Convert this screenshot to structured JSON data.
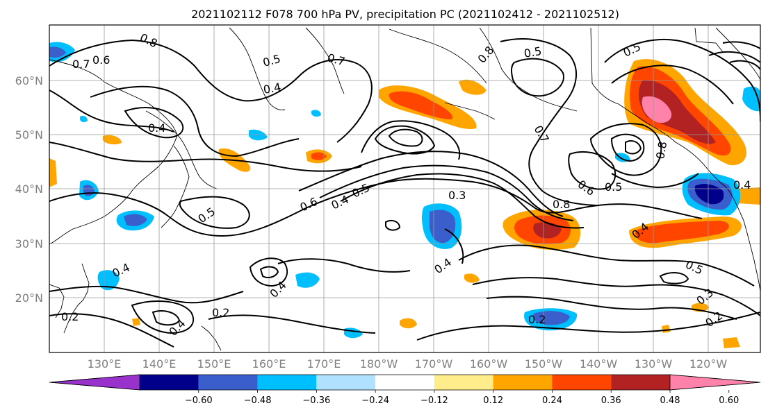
{
  "title": "2021102112 F078 700 hPa PV, precipitation PC (2021102412 - 2021102512)",
  "lat_labels": [
    "60°N",
    "50°N",
    "40°N",
    "30°N",
    "20°N"
  ],
  "lon_labels": [
    "130°E",
    "140°E",
    "150°E",
    "160°E",
    "170°E",
    "180°W",
    "170°W",
    "160°W",
    "150°W",
    "140°W",
    "130°W",
    "120°W"
  ],
  "colorbar": {
    "colors": [
      "#9932CC",
      "#00008B",
      "#3A5FCD",
      "#00BFFF",
      "#B0E2FF",
      "#FFFFFF",
      "#FFEC8B",
      "#FFA500",
      "#FF4500",
      "#B22222",
      "#FF82AB"
    ],
    "tick_labels": [
      "−0.60",
      "−0.48",
      "−0.36",
      "−0.24",
      "−0.12",
      "0.12",
      "0.24",
      "0.36",
      "0.48",
      "0.60"
    ]
  },
  "contour_labels": [
    {
      "text": "0.8"
    },
    {
      "text": "0.7"
    },
    {
      "text": "0.6"
    },
    {
      "text": "0.5"
    },
    {
      "text": "0.4"
    },
    {
      "text": "0.5"
    },
    {
      "text": "0.7"
    },
    {
      "text": "0.8"
    },
    {
      "text": "0.5"
    },
    {
      "text": "0.5"
    },
    {
      "text": "0.4"
    },
    {
      "text": "0.6"
    },
    {
      "text": "0.4"
    },
    {
      "text": "0.5"
    },
    {
      "text": "0.3"
    },
    {
      "text": "0.8"
    },
    {
      "text": "0.7"
    },
    {
      "text": "0.6"
    },
    {
      "text": "0.5"
    },
    {
      "text": "0.4"
    },
    {
      "text": "0.4"
    },
    {
      "text": "0.4"
    },
    {
      "text": "0.4"
    },
    {
      "text": "0.2"
    },
    {
      "text": "0.4"
    },
    {
      "text": "0.2"
    },
    {
      "text": "0.2"
    },
    {
      "text": "0.5"
    },
    {
      "text": "0.3"
    },
    {
      "text": "0.2"
    },
    {
      "text": "0.4"
    },
    {
      "text": "0.8"
    }
  ]
}
